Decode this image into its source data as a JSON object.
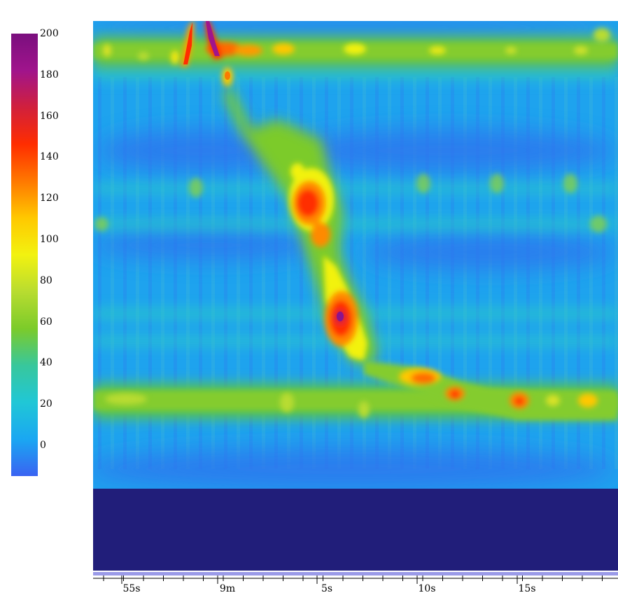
{
  "chart_data": {
    "type": "heatmap",
    "title": "",
    "xlabel": "",
    "ylabel": "",
    "x_tick_labels": [
      "55s",
      "9m",
      "5s",
      "10s",
      "15s"
    ],
    "colorbar": {
      "ticks": [
        200,
        180,
        160,
        140,
        120,
        100,
        80,
        60,
        40,
        20,
        0
      ],
      "range": [
        -15,
        200
      ],
      "colors": [
        "#3a63f2",
        "#1aa7f2",
        "#20c7d6",
        "#38c79c",
        "#7ccb2a",
        "#b8dc30",
        "#f2f210",
        "#ffc800",
        "#ff7800",
        "#ff2d00",
        "#d1203c",
        "#a0148c",
        "#7a0f7e"
      ]
    },
    "features": [
      {
        "name": "top band",
        "intensity": 40
      },
      {
        "name": "diagonal descent",
        "intensity": 130
      },
      {
        "name": "hot spot",
        "intensity": 195
      },
      {
        "name": "lower band",
        "intensity": 45
      }
    ]
  }
}
